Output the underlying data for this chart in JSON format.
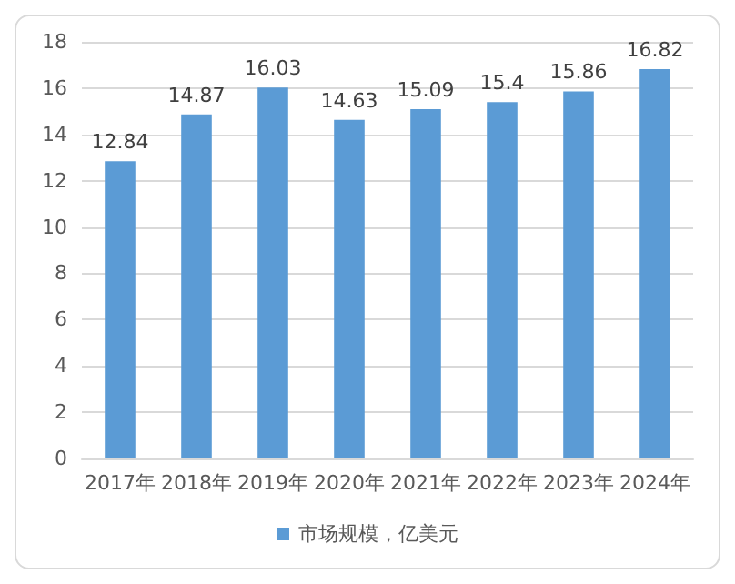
{
  "chart_data": {
    "type": "bar",
    "categories": [
      "2017年",
      "2018年",
      "2019年",
      "2020年",
      "2021年",
      "2022年",
      "2023年",
      "2024年"
    ],
    "series": [
      {
        "name": "市场规模，亿美元",
        "color": "#5b9bd5",
        "values": [
          12.84,
          14.87,
          16.03,
          14.63,
          15.09,
          15.4,
          15.86,
          16.82
        ]
      }
    ],
    "ylim": [
      0,
      18
    ],
    "yticks": [
      0,
      2,
      4,
      6,
      8,
      10,
      12,
      14,
      16,
      18
    ],
    "grid": "y",
    "legend": "bottom",
    "data_labels": true
  }
}
